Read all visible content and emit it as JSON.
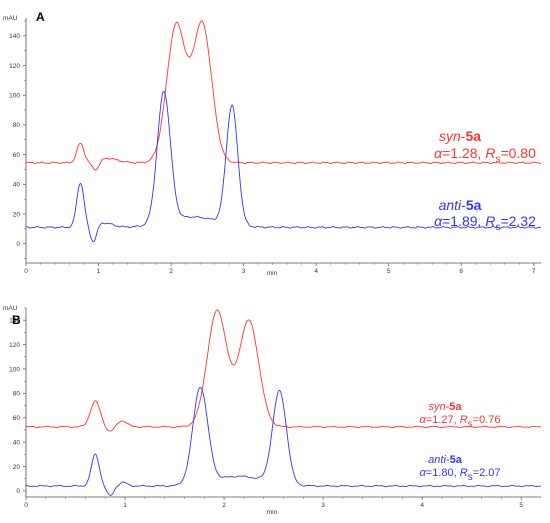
{
  "colors": {
    "syn": "#ff3333",
    "anti": "#3333ff",
    "axis": "#555555"
  },
  "chart_data": [
    {
      "type": "line",
      "panel_label": "A",
      "ylabel": "mAU",
      "xlabel": "min",
      "xlim": [
        0,
        7.1
      ],
      "ylim": [
        -13,
        152
      ],
      "xticks": [
        0,
        1,
        2,
        3,
        4,
        5,
        6,
        7
      ],
      "yticks": [
        0,
        20,
        40,
        60,
        80,
        100,
        120,
        140
      ],
      "series": [
        {
          "key": "syn",
          "baseline": 54.5,
          "peaks": [
            {
              "x": 0.75,
              "h": 13,
              "w": 0.05
            },
            {
              "x": 0.96,
              "h": -6,
              "w": 0.05
            },
            {
              "x": 1.12,
              "h": 3,
              "w": 0.14
            },
            {
              "x": 2.07,
              "h": 92,
              "w": 0.13
            },
            {
              "x": 2.43,
              "h": 93,
              "w": 0.13
            }
          ],
          "name_parts": [
            "syn",
            "-",
            "5a"
          ],
          "stats_parts": [
            "α",
            "=1.28, ",
            "R",
            "s",
            "=0.80"
          ]
        },
        {
          "key": "anti",
          "baseline": 11,
          "peaks": [
            {
              "x": 0.75,
              "h": 30,
              "w": 0.05
            },
            {
              "x": 0.93,
              "h": -11,
              "w": 0.045
            },
            {
              "x": 1.07,
              "h": 3,
              "w": 0.12
            },
            {
              "x": 1.9,
              "h": 88,
              "w": 0.09
            },
            {
              "x": 2.3,
              "h": 7,
              "w": 0.35
            },
            {
              "x": 2.84,
              "h": 80,
              "w": 0.08
            }
          ],
          "name_parts": [
            "anti",
            "-",
            "5a"
          ],
          "stats_parts": [
            "α",
            "=1.89, ",
            "R",
            "s",
            "=2.32"
          ]
        }
      ]
    },
    {
      "type": "line",
      "panel_label": "B",
      "ylabel": "mAU",
      "xlabel": "min",
      "xlim": [
        0,
        5.2
      ],
      "ylim": [
        -5,
        150
      ],
      "xticks": [
        0,
        1,
        2,
        3,
        4,
        5
      ],
      "yticks": [
        0,
        20,
        40,
        60,
        80,
        100,
        120,
        140
      ],
      "series": [
        {
          "key": "syn",
          "baseline": 52.5,
          "peaks": [
            {
              "x": 0.7,
              "h": 21,
              "w": 0.05
            },
            {
              "x": 0.85,
              "h": -4,
              "w": 0.04
            },
            {
              "x": 0.97,
              "h": 5,
              "w": 0.05
            },
            {
              "x": 1.93,
              "h": 95,
              "w": 0.1
            },
            {
              "x": 2.25,
              "h": 87,
              "w": 0.1
            }
          ],
          "name_parts": [
            "syn",
            "-",
            "5a"
          ],
          "stats_parts": [
            "α",
            "=1.27, ",
            "R",
            "s",
            "=0.76"
          ]
        },
        {
          "key": "anti",
          "baseline": 4,
          "peaks": [
            {
              "x": 0.7,
              "h": 26,
              "w": 0.04
            },
            {
              "x": 0.85,
              "h": -8,
              "w": 0.035
            },
            {
              "x": 0.98,
              "h": 3,
              "w": 0.04
            },
            {
              "x": 1.76,
              "h": 79,
              "w": 0.075
            },
            {
              "x": 2.15,
              "h": 8,
              "w": 0.25
            },
            {
              "x": 2.56,
              "h": 76,
              "w": 0.07
            }
          ],
          "name_parts": [
            "anti",
            "-",
            "5a"
          ],
          "stats_parts": [
            "α",
            "=1.80, ",
            "R",
            "s",
            "=2.07"
          ]
        }
      ]
    }
  ]
}
